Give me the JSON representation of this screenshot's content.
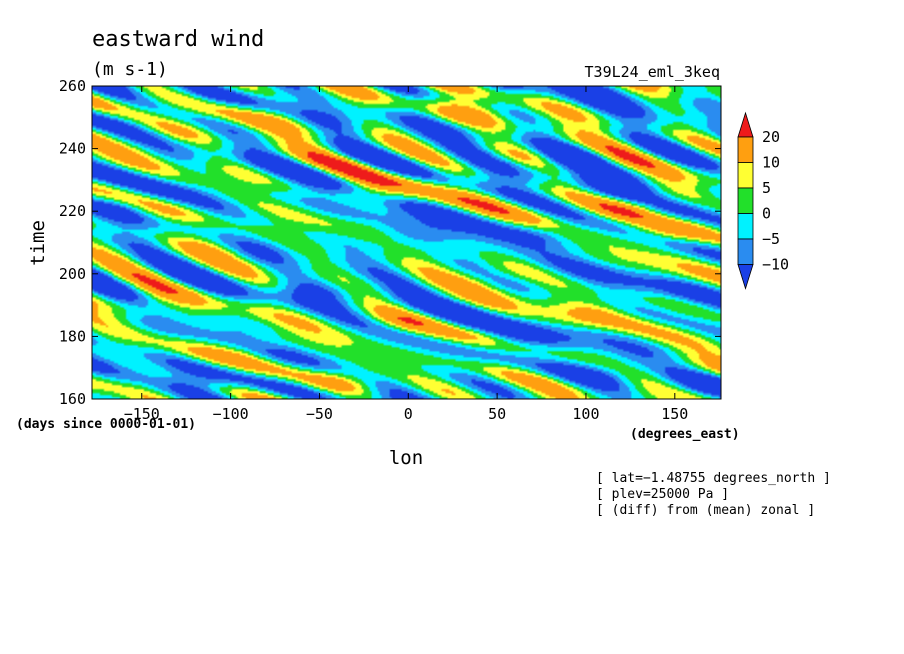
{
  "chart_data": {
    "type": "heatmap",
    "title": "eastward wind",
    "units": "(m s-1)",
    "dataset": "T39L24_eml_3keq",
    "xlabel": "lon",
    "ylabel": "time",
    "x_units": "(degrees_east)",
    "y_units": "(days since 0000-01-01)",
    "xlim": [
      -178,
      176
    ],
    "ylim": [
      160,
      260
    ],
    "x_ticks": [
      -150,
      -100,
      -50,
      0,
      50,
      100,
      150
    ],
    "y_ticks": [
      160,
      180,
      200,
      220,
      240,
      260
    ],
    "x_tick_labels": [
      "−150",
      "−100",
      "−50",
      "0",
      "50",
      "100",
      "150"
    ],
    "y_tick_labels": [
      "160",
      "180",
      "200",
      "220",
      "240",
      "260"
    ],
    "colorbar": {
      "levels": [
        -10,
        -5,
        0,
        5,
        10,
        20
      ],
      "labels": [
        "−10",
        "−5",
        "0",
        "5",
        "10",
        "20"
      ],
      "colors": [
        "#1a40e6",
        "#2a8cf0",
        "#00f2ff",
        "#22e02a",
        "#ffff33",
        "#ff9f10",
        "#ee1b1b"
      ],
      "extend": "both"
    },
    "notes": [
      "[ lat=−1.48755 degrees_north ]",
      "[ plev=25000 Pa ]",
      "[ (diff) from (mean) zonal ]"
    ],
    "features": [
      {
        "lon": -135,
        "time": 244,
        "value": 6
      },
      {
        "lon": -65,
        "time": 252,
        "value": 7
      },
      {
        "lon": -20,
        "time": 226,
        "value": 9
      },
      {
        "lon": 30,
        "time": 251,
        "value": 7
      },
      {
        "lon": 130,
        "time": 222,
        "value": 11
      },
      {
        "lon": 150,
        "time": 214,
        "value": 9
      },
      {
        "lon": -35,
        "time": 166,
        "value": 10
      },
      {
        "lon": -85,
        "time": 177,
        "value": 7
      },
      {
        "lon": -5,
        "time": 185,
        "value": 6
      },
      {
        "lon": -150,
        "time": 190,
        "value": 7
      },
      {
        "lon": 100,
        "time": 186,
        "value": 5
      },
      {
        "lon": 50,
        "time": 200,
        "value": 5
      },
      {
        "lon": 150,
        "time": 170,
        "value": 5
      },
      {
        "lon": -110,
        "time": 210,
        "value": 5
      },
      {
        "lon": 90,
        "time": 236,
        "value": -9
      },
      {
        "lon": 120,
        "time": 230,
        "value": -7
      },
      {
        "lon": -160,
        "time": 222,
        "value": -8
      },
      {
        "lon": 75,
        "time": 213,
        "value": -6
      },
      {
        "lon": 0,
        "time": 212,
        "value": -8
      },
      {
        "lon": -50,
        "time": 194,
        "value": -7
      },
      {
        "lon": 60,
        "time": 178,
        "value": -6
      },
      {
        "lon": 110,
        "time": 168,
        "value": -7
      },
      {
        "lon": -120,
        "time": 164,
        "value": -6
      }
    ]
  }
}
